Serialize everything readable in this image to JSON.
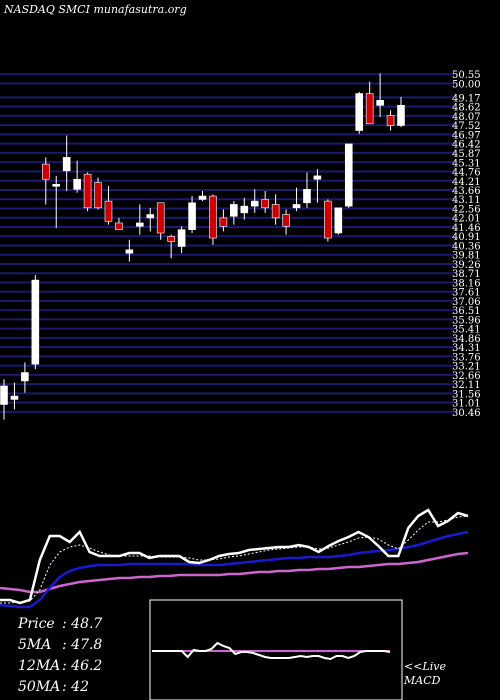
{
  "header": {
    "title": "NASDAQ SMCI munafasutra.org"
  },
  "stats": [
    {
      "label": "Price",
      "value": ": 48.7"
    },
    {
      "label": "5MA",
      "value": ": 47.8"
    },
    {
      "label": "12MA",
      "value": ": 46.2"
    },
    {
      "label": "50MA",
      "value": ": 42"
    }
  ],
  "macd_label": {
    "line1": "<<Live",
    "line2": "MACD"
  },
  "colors": {
    "background": "#000000",
    "grid": "#1a1a6e",
    "bullish": "#ffffff",
    "bearish": "#cc0000",
    "price_line": "#ffffff",
    "ma_blue": "#1a1acc",
    "ma_magenta": "#cc66cc",
    "macd_signal": "#cc66cc",
    "macd_line": "#ffffff"
  },
  "chart_data": {
    "type": "candlestick",
    "ylim": [
      29.5,
      50.8
    ],
    "price_tick_labels": [
      "50.55",
      "50.00",
      "49.17",
      "48.62",
      "48.07",
      "47.52",
      "46.97",
      "46.42",
      "45.87",
      "45.31",
      "44.76",
      "44.21",
      "43.66",
      "43.11",
      "42.56",
      "42.01",
      "41.46",
      "40.91",
      "40.36",
      "39.81",
      "39.26",
      "38.71",
      "38.16",
      "37.61",
      "37.06",
      "36.51",
      "35.96",
      "35.41",
      "34.86",
      "34.31",
      "33.76",
      "33.21",
      "32.66",
      "32.11",
      "31.56",
      "31.01",
      "30.46"
    ],
    "candles": [
      {
        "o": 30.9,
        "h": 32.4,
        "l": 30.0,
        "c": 32.0
      },
      {
        "o": 31.2,
        "h": 32.2,
        "l": 30.6,
        "c": 31.4
      },
      {
        "o": 32.3,
        "h": 33.4,
        "l": 31.6,
        "c": 32.8
      },
      {
        "o": 33.3,
        "h": 38.6,
        "l": 33.0,
        "c": 38.3
      },
      {
        "o": 45.2,
        "h": 45.6,
        "l": 42.8,
        "c": 44.3
      },
      {
        "o": 44.0,
        "h": 44.5,
        "l": 41.4,
        "c": 44.0
      },
      {
        "o": 44.8,
        "h": 46.9,
        "l": 43.6,
        "c": 45.6
      },
      {
        "o": 43.7,
        "h": 45.4,
        "l": 43.5,
        "c": 44.3
      },
      {
        "o": 44.6,
        "h": 44.7,
        "l": 42.4,
        "c": 42.6
      },
      {
        "o": 44.1,
        "h": 44.4,
        "l": 42.5,
        "c": 42.6
      },
      {
        "o": 43.0,
        "h": 43.9,
        "l": 41.6,
        "c": 41.8
      },
      {
        "o": 41.7,
        "h": 42.0,
        "l": 41.4,
        "c": 41.3
      },
      {
        "o": 39.9,
        "h": 40.7,
        "l": 39.4,
        "c": 40.1
      },
      {
        "o": 41.5,
        "h": 42.8,
        "l": 41.0,
        "c": 41.7
      },
      {
        "o": 42.0,
        "h": 42.6,
        "l": 41.2,
        "c": 42.2
      },
      {
        "o": 42.9,
        "h": 42.9,
        "l": 40.7,
        "c": 41.1
      },
      {
        "o": 40.9,
        "h": 41.0,
        "l": 39.6,
        "c": 40.6
      },
      {
        "o": 40.3,
        "h": 41.5,
        "l": 39.9,
        "c": 41.3
      },
      {
        "o": 41.3,
        "h": 43.3,
        "l": 41.1,
        "c": 42.9
      },
      {
        "o": 43.1,
        "h": 43.6,
        "l": 43.0,
        "c": 43.3
      },
      {
        "o": 43.3,
        "h": 43.4,
        "l": 40.4,
        "c": 40.8
      },
      {
        "o": 42.0,
        "h": 42.5,
        "l": 41.2,
        "c": 41.5
      },
      {
        "o": 42.1,
        "h": 43.0,
        "l": 41.6,
        "c": 42.8
      },
      {
        "o": 42.3,
        "h": 43.2,
        "l": 41.9,
        "c": 42.7
      },
      {
        "o": 42.7,
        "h": 43.7,
        "l": 42.3,
        "c": 43.0
      },
      {
        "o": 43.1,
        "h": 43.6,
        "l": 42.3,
        "c": 42.6
      },
      {
        "o": 42.8,
        "h": 43.4,
        "l": 41.6,
        "c": 42.0
      },
      {
        "o": 42.2,
        "h": 42.5,
        "l": 41.0,
        "c": 41.5
      },
      {
        "o": 42.6,
        "h": 43.8,
        "l": 42.4,
        "c": 42.8
      },
      {
        "o": 42.9,
        "h": 44.7,
        "l": 42.6,
        "c": 43.7
      },
      {
        "o": 44.3,
        "h": 44.9,
        "l": 42.9,
        "c": 44.5
      },
      {
        "o": 43.0,
        "h": 43.1,
        "l": 40.6,
        "c": 40.8
      },
      {
        "o": 41.1,
        "h": 42.6,
        "l": 41.0,
        "c": 42.6
      },
      {
        "o": 42.7,
        "h": 46.4,
        "l": 42.6,
        "c": 46.4
      },
      {
        "o": 47.2,
        "h": 49.5,
        "l": 47.0,
        "c": 49.4
      },
      {
        "o": 49.4,
        "h": 50.1,
        "l": 47.6,
        "c": 47.6
      },
      {
        "o": 48.7,
        "h": 50.6,
        "l": 48.0,
        "c": 49.0
      },
      {
        "o": 48.1,
        "h": 48.4,
        "l": 47.2,
        "c": 47.5
      },
      {
        "o": 47.5,
        "h": 49.2,
        "l": 47.4,
        "c": 48.7
      }
    ],
    "indicator_series": {
      "price_solid": [
        600,
        600,
        603,
        600,
        560,
        536,
        536,
        542,
        532,
        552,
        556,
        556,
        556,
        553,
        553,
        558,
        556,
        556,
        556,
        562,
        563,
        560,
        556,
        554,
        553,
        550,
        549,
        548,
        547,
        547,
        545,
        547,
        552,
        546,
        541,
        537,
        532,
        537,
        546,
        556,
        556,
        528,
        516,
        510,
        526,
        521,
        513,
        516
      ],
      "price_dotted": [
        603,
        603,
        602,
        601,
        590,
        565,
        552,
        547,
        545,
        548,
        552,
        555,
        556,
        556,
        556,
        556,
        557,
        557,
        557,
        558,
        560,
        560,
        559,
        557,
        556,
        554,
        552,
        550,
        549,
        548,
        547,
        547,
        549,
        548,
        545,
        542,
        538,
        537,
        539,
        545,
        549,
        540,
        530,
        522,
        522,
        520,
        517,
        516
      ],
      "ma_blue": [
        605,
        606,
        607,
        607,
        600,
        588,
        577,
        571,
        568,
        566,
        565,
        565,
        565,
        564,
        564,
        564,
        564,
        564,
        564,
        564,
        565,
        565,
        565,
        564,
        563,
        562,
        561,
        560,
        559,
        558,
        558,
        557,
        557,
        557,
        556,
        555,
        553,
        552,
        551,
        550,
        549,
        547,
        545,
        542,
        539,
        536,
        534,
        532
      ],
      "ma_magenta": [
        588,
        589,
        590,
        592,
        592,
        589,
        586,
        584,
        582,
        581,
        580,
        579,
        578,
        578,
        577,
        577,
        576,
        576,
        575,
        575,
        575,
        575,
        575,
        574,
        574,
        573,
        572,
        572,
        571,
        571,
        570,
        570,
        569,
        569,
        568,
        567,
        567,
        566,
        565,
        564,
        564,
        563,
        562,
        560,
        558,
        556,
        554,
        553
      ],
      "macd_line": [
        651,
        651,
        651,
        651,
        651,
        651,
        657,
        650,
        651,
        651,
        649,
        643,
        646,
        648,
        654,
        652,
        652,
        653,
        655,
        657,
        658,
        658,
        658,
        658,
        657,
        656,
        657,
        656,
        656,
        658,
        659,
        656,
        656,
        658,
        656,
        652,
        651,
        651,
        651,
        651,
        652
      ],
      "macd_signal": [
        651,
        651,
        651,
        651,
        651,
        651,
        651,
        651,
        651,
        651,
        651,
        651,
        651,
        651,
        651,
        651,
        651,
        651,
        651,
        651,
        651,
        651,
        651,
        651,
        651,
        651,
        651,
        651,
        651,
        651,
        651,
        651,
        651,
        651,
        651,
        651,
        651,
        651,
        651,
        651,
        651
      ]
    }
  }
}
